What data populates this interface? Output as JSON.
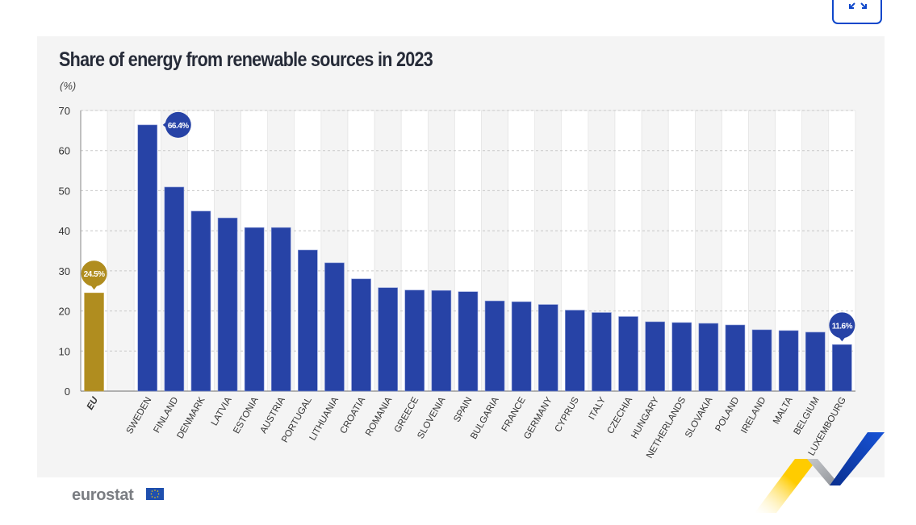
{
  "header": {
    "title": "Share of energy from renewable sources in 2023",
    "unit": "(%)",
    "expand_icon": "collapse-arrows-icon"
  },
  "footer": {
    "logo_text": "eurostat",
    "flag_icon": "eu-flag-icon"
  },
  "colors": {
    "eu_bar": "#b08d1f",
    "country_bar": "#2743a6",
    "callout_blue": "#2743a6",
    "callout_gold": "#b08d1f",
    "accent_blue": "#0e47cb",
    "accent_yellow": "#ffcc00"
  },
  "chart_data": {
    "type": "bar",
    "title": "Share of energy from renewable sources in 2023",
    "subtitle": "(%)",
    "xlabel": "",
    "ylabel": "(%)",
    "ylim": [
      0,
      70
    ],
    "yticks": [
      0,
      10,
      20,
      30,
      40,
      50,
      60,
      70
    ],
    "grid": true,
    "legend": "none",
    "categories": [
      "EU",
      "SWEDEN",
      "FINLAND",
      "DENMARK",
      "LATVIA",
      "ESTONIA",
      "AUSTRIA",
      "PORTUGAL",
      "LITHUANIA",
      "CROATIA",
      "ROMANIA",
      "GREECE",
      "SLOVENIA",
      "SPAIN",
      "BULGARIA",
      "FRANCE",
      "GERMANY",
      "CYPRUS",
      "ITALY",
      "CZECHIA",
      "HUNGARY",
      "NETHERLANDS",
      "SLOVAKIA",
      "POLAND",
      "IRELAND",
      "MALTA",
      "BELGIUM",
      "LUXEMBOURG"
    ],
    "values": [
      24.5,
      66.4,
      50.9,
      44.9,
      43.2,
      40.8,
      40.8,
      35.2,
      32.0,
      28.0,
      25.8,
      25.2,
      25.1,
      24.8,
      22.5,
      22.3,
      21.6,
      20.2,
      19.6,
      18.6,
      17.3,
      17.1,
      16.9,
      16.5,
      15.3,
      15.1,
      14.7,
      11.6
    ],
    "annotations": [
      {
        "category": "EU",
        "text": "24.5%"
      },
      {
        "category": "SWEDEN",
        "text": "66.4%"
      },
      {
        "category": "LUXEMBOURG",
        "text": "11.6%"
      }
    ]
  }
}
